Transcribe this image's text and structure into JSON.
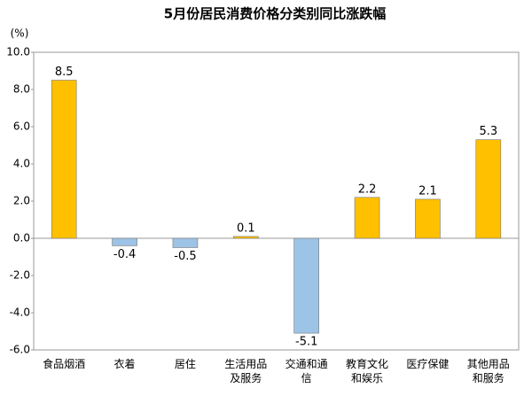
{
  "chart_data": {
    "type": "bar",
    "title": "5月份居民消费价格分类别同比涨跌幅",
    "y_unit": "(%)",
    "categories": [
      "食品烟酒",
      "衣着",
      "居住",
      "生活用品及服务",
      "交通和通信",
      "教育文化和娱乐",
      "医疗保健",
      "其他用品和服务"
    ],
    "values": [
      8.5,
      -0.4,
      -0.5,
      0.1,
      -5.1,
      2.2,
      2.1,
      5.3
    ],
    "colors": [
      "#ffc000",
      "#9dc3e6",
      "#9dc3e6",
      "#ffc000",
      "#9dc3e6",
      "#ffc000",
      "#ffc000",
      "#ffc000"
    ],
    "ylim": [
      -6,
      10
    ],
    "yticks": [
      {
        "value": 10,
        "label": "10.0"
      },
      {
        "value": 8,
        "label": "8.0"
      },
      {
        "value": 6,
        "label": "6.0"
      },
      {
        "value": 4,
        "label": "4.0"
      },
      {
        "value": 2,
        "label": "2.0"
      },
      {
        "value": 0,
        "label": "0.0"
      },
      {
        "value": -2,
        "label": "-2.0"
      },
      {
        "value": -4,
        "label": "-4.0"
      },
      {
        "value": -6,
        "label": "-6.0"
      }
    ],
    "grid": false
  }
}
